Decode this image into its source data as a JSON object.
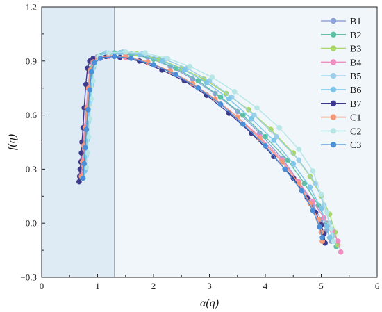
{
  "chart_data": {
    "type": "line",
    "xlabel": "α(q)",
    "ylabel": "f(q)",
    "xlim": [
      0,
      6
    ],
    "ylim": [
      -0.3,
      1.2
    ],
    "x_ticks": [
      0,
      1,
      2,
      3,
      4,
      5,
      6
    ],
    "y_ticks": [
      -0.3,
      0.0,
      0.3,
      0.6,
      0.9,
      1.2
    ],
    "x_tick_labels": [
      "0",
      "1",
      "2",
      "3",
      "4",
      "5",
      "6"
    ],
    "y_tick_labels": [
      "−0.3",
      "0.0",
      "0.3",
      "0.6",
      "0.9",
      "1.2"
    ],
    "grid": false,
    "legend_position": "top-right",
    "shaded_region": {
      "x": [
        0,
        1.3
      ],
      "color": "#deebf5"
    },
    "right_region_color": "#f1f6fa",
    "series": [
      {
        "name": "B1",
        "color": "#8fa4d6",
        "points": [
          [
            0.72,
            0.26
          ],
          [
            0.74,
            0.34
          ],
          [
            0.76,
            0.42
          ],
          [
            0.78,
            0.52
          ],
          [
            0.81,
            0.64
          ],
          [
            0.84,
            0.76
          ],
          [
            0.87,
            0.85
          ],
          [
            0.92,
            0.9
          ],
          [
            1.0,
            0.925
          ],
          [
            1.2,
            0.94
          ],
          [
            1.5,
            0.94
          ],
          [
            1.9,
            0.92
          ],
          [
            2.3,
            0.87
          ],
          [
            2.7,
            0.8
          ],
          [
            3.1,
            0.72
          ],
          [
            3.5,
            0.62
          ],
          [
            3.9,
            0.5
          ],
          [
            4.3,
            0.36
          ],
          [
            4.6,
            0.23
          ],
          [
            4.85,
            0.1
          ],
          [
            5.0,
            0.02
          ],
          [
            5.1,
            -0.04
          ],
          [
            5.18,
            -0.1
          ]
        ]
      },
      {
        "name": "B2",
        "color": "#5fc0a8",
        "points": [
          [
            0.74,
            0.28
          ],
          [
            0.76,
            0.36
          ],
          [
            0.78,
            0.44
          ],
          [
            0.8,
            0.54
          ],
          [
            0.83,
            0.65
          ],
          [
            0.86,
            0.76
          ],
          [
            0.89,
            0.86
          ],
          [
            0.95,
            0.91
          ],
          [
            1.05,
            0.93
          ],
          [
            1.3,
            0.945
          ],
          [
            1.6,
            0.94
          ],
          [
            2.0,
            0.91
          ],
          [
            2.4,
            0.86
          ],
          [
            2.8,
            0.79
          ],
          [
            3.2,
            0.7
          ],
          [
            3.6,
            0.6
          ],
          [
            4.0,
            0.48
          ],
          [
            4.4,
            0.35
          ],
          [
            4.7,
            0.22
          ],
          [
            4.95,
            0.1
          ],
          [
            5.1,
            0.0
          ],
          [
            5.2,
            -0.07
          ],
          [
            5.27,
            -0.13
          ]
        ]
      },
      {
        "name": "B3",
        "color": "#a9d66a",
        "points": [
          [
            0.76,
            0.3
          ],
          [
            0.78,
            0.38
          ],
          [
            0.8,
            0.46
          ],
          [
            0.82,
            0.56
          ],
          [
            0.85,
            0.66
          ],
          [
            0.88,
            0.76
          ],
          [
            0.91,
            0.86
          ],
          [
            0.97,
            0.91
          ],
          [
            1.1,
            0.935
          ],
          [
            1.4,
            0.945
          ],
          [
            1.7,
            0.94
          ],
          [
            2.1,
            0.91
          ],
          [
            2.5,
            0.86
          ],
          [
            2.9,
            0.8
          ],
          [
            3.3,
            0.72
          ],
          [
            3.7,
            0.63
          ],
          [
            4.1,
            0.52
          ],
          [
            4.5,
            0.39
          ],
          [
            4.8,
            0.26
          ],
          [
            5.0,
            0.15
          ],
          [
            5.15,
            0.05
          ],
          [
            5.25,
            -0.05
          ],
          [
            5.3,
            -0.12
          ]
        ]
      },
      {
        "name": "B4",
        "color": "#f08cc0",
        "points": [
          [
            0.7,
            0.27
          ],
          [
            0.72,
            0.35
          ],
          [
            0.74,
            0.44
          ],
          [
            0.77,
            0.54
          ],
          [
            0.8,
            0.64
          ],
          [
            0.83,
            0.75
          ],
          [
            0.86,
            0.84
          ],
          [
            0.91,
            0.89
          ],
          [
            1.0,
            0.915
          ],
          [
            1.2,
            0.925
          ],
          [
            1.5,
            0.92
          ],
          [
            1.9,
            0.89
          ],
          [
            2.3,
            0.84
          ],
          [
            2.7,
            0.77
          ],
          [
            3.1,
            0.69
          ],
          [
            3.5,
            0.59
          ],
          [
            3.9,
            0.48
          ],
          [
            4.3,
            0.35
          ],
          [
            4.6,
            0.23
          ],
          [
            4.85,
            0.12
          ],
          [
            5.05,
            0.03
          ],
          [
            5.2,
            -0.04
          ],
          [
            5.3,
            -0.1
          ],
          [
            5.35,
            -0.16
          ]
        ]
      },
      {
        "name": "B5",
        "color": "#9bcfe8",
        "points": [
          [
            0.78,
            0.3
          ],
          [
            0.8,
            0.38
          ],
          [
            0.82,
            0.47
          ],
          [
            0.84,
            0.57
          ],
          [
            0.87,
            0.68
          ],
          [
            0.9,
            0.78
          ],
          [
            0.93,
            0.87
          ],
          [
            1.0,
            0.92
          ],
          [
            1.15,
            0.945
          ],
          [
            1.45,
            0.95
          ],
          [
            1.8,
            0.94
          ],
          [
            2.2,
            0.91
          ],
          [
            2.6,
            0.86
          ],
          [
            3.0,
            0.79
          ],
          [
            3.4,
            0.7
          ],
          [
            3.8,
            0.6
          ],
          [
            4.2,
            0.48
          ],
          [
            4.6,
            0.35
          ],
          [
            4.9,
            0.22
          ],
          [
            5.05,
            0.1
          ],
          [
            5.15,
            0.0
          ],
          [
            5.2,
            -0.07
          ]
        ]
      },
      {
        "name": "B6",
        "color": "#7ec5e8",
        "points": [
          [
            0.77,
            0.29
          ],
          [
            0.79,
            0.37
          ],
          [
            0.81,
            0.46
          ],
          [
            0.83,
            0.56
          ],
          [
            0.86,
            0.67
          ],
          [
            0.89,
            0.77
          ],
          [
            0.92,
            0.86
          ],
          [
            0.98,
            0.91
          ],
          [
            1.1,
            0.935
          ],
          [
            1.4,
            0.945
          ],
          [
            1.75,
            0.935
          ],
          [
            2.15,
            0.9
          ],
          [
            2.55,
            0.85
          ],
          [
            2.95,
            0.78
          ],
          [
            3.35,
            0.69
          ],
          [
            3.75,
            0.58
          ],
          [
            4.15,
            0.46
          ],
          [
            4.5,
            0.33
          ],
          [
            4.8,
            0.2
          ],
          [
            5.0,
            0.08
          ],
          [
            5.1,
            -0.02
          ],
          [
            5.15,
            -0.08
          ]
        ]
      },
      {
        "name": "B7",
        "color": "#3d3a8e",
        "points": [
          [
            0.67,
            0.23
          ],
          [
            0.68,
            0.26
          ],
          [
            0.69,
            0.3
          ],
          [
            0.7,
            0.34
          ],
          [
            0.71,
            0.39
          ],
          [
            0.72,
            0.45
          ],
          [
            0.74,
            0.53
          ],
          [
            0.76,
            0.64
          ],
          [
            0.79,
            0.77
          ],
          [
            0.82,
            0.86
          ],
          [
            0.86,
            0.9
          ],
          [
            0.92,
            0.915
          ],
          [
            1.0,
            0.92
          ],
          [
            1.15,
            0.925
          ],
          [
            1.4,
            0.92
          ],
          [
            1.75,
            0.9
          ],
          [
            2.15,
            0.85
          ],
          [
            2.55,
            0.79
          ],
          [
            2.95,
            0.71
          ],
          [
            3.35,
            0.61
          ],
          [
            3.75,
            0.5
          ],
          [
            4.15,
            0.37
          ],
          [
            4.5,
            0.25
          ],
          [
            4.75,
            0.14
          ],
          [
            4.9,
            0.06
          ],
          [
            5.0,
            -0.01
          ],
          [
            5.05,
            -0.06
          ],
          [
            5.07,
            -0.11
          ]
        ]
      },
      {
        "name": "C1",
        "color": "#f5997a",
        "points": [
          [
            0.71,
            0.26
          ],
          [
            0.73,
            0.34
          ],
          [
            0.75,
            0.43
          ],
          [
            0.78,
            0.53
          ],
          [
            0.81,
            0.64
          ],
          [
            0.84,
            0.75
          ],
          [
            0.87,
            0.85
          ],
          [
            0.92,
            0.895
          ],
          [
            1.0,
            0.92
          ],
          [
            1.2,
            0.93
          ],
          [
            1.5,
            0.925
          ],
          [
            1.9,
            0.895
          ],
          [
            2.3,
            0.845
          ],
          [
            2.7,
            0.775
          ],
          [
            3.1,
            0.69
          ],
          [
            3.5,
            0.59
          ],
          [
            3.9,
            0.47
          ],
          [
            4.3,
            0.34
          ],
          [
            4.6,
            0.22
          ],
          [
            4.8,
            0.11
          ],
          [
            4.95,
            0.02
          ],
          [
            5.0,
            -0.05
          ],
          [
            5.02,
            -0.1
          ]
        ]
      },
      {
        "name": "C2",
        "color": "#b6e6e6",
        "points": [
          [
            0.8,
            0.31
          ],
          [
            0.82,
            0.39
          ],
          [
            0.84,
            0.48
          ],
          [
            0.86,
            0.58
          ],
          [
            0.89,
            0.69
          ],
          [
            0.92,
            0.79
          ],
          [
            0.95,
            0.88
          ],
          [
            1.02,
            0.925
          ],
          [
            1.2,
            0.945
          ],
          [
            1.5,
            0.95
          ],
          [
            1.85,
            0.945
          ],
          [
            2.25,
            0.915
          ],
          [
            2.65,
            0.87
          ],
          [
            3.05,
            0.81
          ],
          [
            3.45,
            0.73
          ],
          [
            3.85,
            0.64
          ],
          [
            4.25,
            0.53
          ],
          [
            4.6,
            0.41
          ],
          [
            4.85,
            0.29
          ],
          [
            5.0,
            0.16
          ],
          [
            5.1,
            0.06
          ],
          [
            5.18,
            -0.03
          ],
          [
            5.22,
            -0.1
          ]
        ]
      },
      {
        "name": "C3",
        "color": "#4a8fd8",
        "points": [
          [
            0.74,
            0.25
          ],
          [
            0.76,
            0.33
          ],
          [
            0.78,
            0.42
          ],
          [
            0.8,
            0.52
          ],
          [
            0.83,
            0.63
          ],
          [
            0.86,
            0.74
          ],
          [
            0.89,
            0.84
          ],
          [
            0.94,
            0.89
          ],
          [
            1.05,
            0.915
          ],
          [
            1.3,
            0.925
          ],
          [
            1.6,
            0.915
          ],
          [
            2.0,
            0.88
          ],
          [
            2.4,
            0.825
          ],
          [
            2.8,
            0.75
          ],
          [
            3.2,
            0.66
          ],
          [
            3.6,
            0.55
          ],
          [
            4.0,
            0.43
          ],
          [
            4.35,
            0.3
          ],
          [
            4.65,
            0.18
          ],
          [
            4.85,
            0.07
          ],
          [
            4.97,
            -0.02
          ],
          [
            5.02,
            -0.08
          ]
        ]
      }
    ]
  }
}
